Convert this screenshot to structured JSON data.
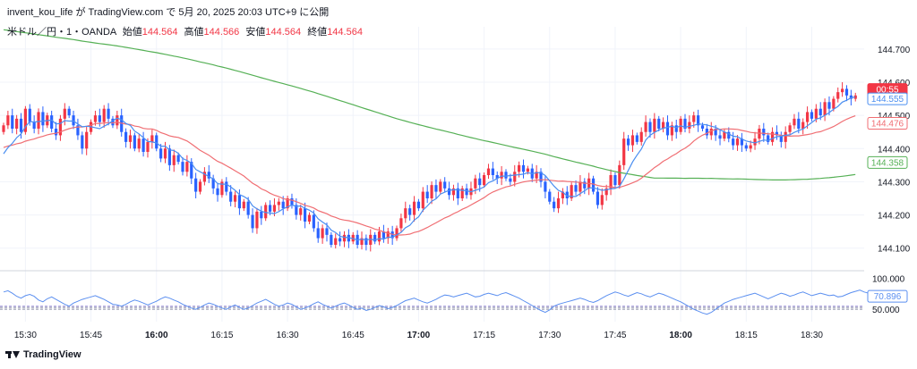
{
  "header": {
    "author": "invent_kou_life",
    "ga": "が",
    "site": "TradingView.com",
    "de": "で",
    "datetime": "5月 20, 2025 20:03 UTC+9",
    "published": "に公開"
  },
  "symbol_line": {
    "name": "米ドル／円・1・OANDA",
    "open_label": "始値",
    "open": "144.564",
    "high_label": "高値",
    "high": "144.566",
    "low_label": "安値",
    "low": "144.564",
    "close_label": "終値",
    "close": "144.564"
  },
  "footer": {
    "brand": "TradingView"
  },
  "colors": {
    "up": "#f23645",
    "down": "#2962ff",
    "ma_fast": "#4a8ef0",
    "ma_mid": "#f06e73",
    "ma_slow": "#55b055",
    "rsi": "#5b8ff0",
    "grid": "#f0f3fa"
  },
  "chart_data": [
    {
      "type": "candlestick",
      "title": "米ドル／円・1・OANDA",
      "ylim": [
        144.04,
        144.74
      ],
      "y_ticks": [
        144.1,
        144.2,
        144.3,
        144.4,
        144.5,
        144.6,
        144.7
      ],
      "y_tick_labels": [
        "144.100",
        "144.200",
        "144.300",
        "144.400",
        "144.500",
        "144.600",
        "144.700"
      ],
      "x_tick_labels": [
        "15:30",
        "15:45",
        "16:00",
        "16:15",
        "16:30",
        "16:45",
        "17:00",
        "17:15",
        "17:30",
        "17:45",
        "18:00",
        "18:15",
        "18:30"
      ],
      "x_tick_bold": [
        false,
        false,
        true,
        false,
        false,
        false,
        true,
        false,
        false,
        false,
        true,
        false,
        false
      ],
      "x_tick_minutes": [
        930,
        945,
        960,
        975,
        990,
        1005,
        1020,
        1035,
        1050,
        1065,
        1080,
        1095,
        1110
      ],
      "x_range_minutes": [
        925,
        1122
      ],
      "candles_start_minute": 925,
      "price_markers": [
        {
          "label": "00:55",
          "value": 144.564,
          "style": "filled",
          "color": "#f23645"
        },
        {
          "label": "144.555",
          "value": 144.555,
          "style": "outline",
          "color": "#4a8ef0"
        },
        {
          "label": "144.476",
          "value": 144.476,
          "style": "outline",
          "color": "#f06e73"
        },
        {
          "label": "144.358",
          "value": 144.358,
          "style": "outline",
          "color": "#55b055"
        }
      ],
      "close": [
        144.47,
        144.5,
        144.46,
        144.49,
        144.45,
        144.52,
        144.48,
        144.46,
        144.51,
        144.47,
        144.5,
        144.46,
        144.44,
        144.49,
        144.52,
        144.5,
        144.47,
        144.44,
        144.4,
        144.45,
        144.48,
        144.5,
        144.48,
        144.52,
        144.49,
        144.47,
        144.5,
        144.45,
        144.42,
        144.44,
        144.4,
        144.43,
        144.39,
        144.42,
        144.44,
        144.4,
        144.37,
        144.4,
        144.35,
        144.38,
        144.36,
        144.33,
        144.36,
        144.31,
        144.27,
        144.3,
        144.33,
        144.31,
        144.28,
        144.26,
        144.3,
        144.27,
        144.24,
        144.26,
        144.22,
        144.24,
        144.2,
        144.16,
        144.21,
        144.19,
        144.23,
        144.21,
        144.23,
        144.24,
        144.22,
        144.25,
        144.23,
        144.2,
        144.22,
        144.18,
        144.2,
        144.16,
        144.13,
        144.16,
        144.14,
        144.11,
        144.13,
        144.12,
        144.14,
        144.12,
        144.14,
        144.11,
        144.13,
        144.11,
        144.14,
        144.12,
        144.15,
        144.13,
        144.15,
        144.13,
        144.16,
        144.19,
        144.22,
        144.2,
        144.24,
        144.22,
        144.27,
        144.25,
        144.29,
        144.27,
        144.3,
        144.28,
        144.26,
        144.28,
        144.25,
        144.28,
        144.26,
        144.28,
        144.31,
        144.29,
        144.32,
        144.34,
        144.32,
        144.31,
        144.33,
        144.31,
        144.3,
        144.33,
        144.35,
        144.33,
        144.34,
        144.31,
        144.33,
        144.3,
        144.27,
        144.24,
        144.22,
        144.25,
        144.27,
        144.25,
        144.29,
        144.27,
        144.3,
        144.28,
        144.31,
        144.27,
        144.23,
        144.26,
        144.28,
        144.32,
        144.29,
        144.35,
        144.43,
        144.41,
        144.44,
        144.42,
        144.45,
        144.48,
        144.45,
        144.49,
        144.46,
        144.48,
        144.44,
        144.47,
        144.45,
        144.49,
        144.46,
        144.48,
        144.5,
        144.47,
        144.46,
        144.44,
        144.46,
        144.44,
        144.43,
        144.45,
        144.43,
        144.41,
        144.43,
        144.41,
        144.4,
        144.41,
        144.43,
        144.46,
        144.44,
        144.42,
        144.45,
        144.44,
        144.42,
        144.45,
        144.47,
        144.49,
        144.46,
        144.48,
        144.51,
        144.49,
        144.52,
        144.5,
        144.54,
        144.52,
        144.55,
        144.57,
        144.58,
        144.56,
        144.55,
        144.56
      ]
    },
    {
      "type": "line",
      "title": "RSI",
      "ylim": [
        30,
        108
      ],
      "y_ticks": [
        100,
        50
      ],
      "y_tick_labels": [
        "100.000",
        "50.000"
      ],
      "band_lines": [
        55,
        53,
        50
      ],
      "last_label": "70.896",
      "last_value": 70.896,
      "values": [
        78,
        80,
        76,
        71,
        68,
        72,
        74,
        71,
        65,
        62,
        67,
        70,
        66,
        62,
        58,
        55,
        60,
        63,
        66,
        68,
        70,
        72,
        69,
        66,
        62,
        58,
        57,
        55,
        58,
        62,
        65,
        63,
        60,
        57,
        60,
        63,
        67,
        70,
        68,
        65,
        62,
        58,
        55,
        52,
        50,
        53,
        57,
        60,
        58,
        55,
        52,
        50,
        54,
        57,
        53,
        50,
        52,
        56,
        60,
        63,
        66,
        62,
        58,
        55,
        57,
        60,
        58,
        54,
        50,
        52,
        55,
        59,
        62,
        58,
        55,
        52,
        55,
        58,
        60,
        57,
        53,
        50,
        52,
        48,
        50,
        53,
        56,
        54,
        51,
        53,
        56,
        60,
        64,
        66,
        68,
        65,
        62,
        60,
        63,
        66,
        70,
        73,
        72,
        70,
        72,
        74,
        76,
        73,
        70,
        71,
        74,
        76,
        74,
        72,
        75,
        77,
        74,
        71,
        68,
        64,
        60,
        56,
        52,
        48,
        45,
        49,
        55,
        58,
        60,
        62,
        64,
        66,
        68,
        66,
        63,
        61,
        64,
        68,
        72,
        75,
        78,
        76,
        73,
        71,
        74,
        77,
        75,
        72,
        70,
        73,
        76,
        74,
        71,
        68,
        65,
        62,
        58,
        54,
        50,
        47,
        44,
        42,
        45,
        50,
        55,
        60,
        63,
        66,
        68,
        70,
        72,
        74,
        76,
        73,
        70,
        67,
        70,
        73,
        76,
        74,
        71,
        73,
        76,
        78,
        75,
        72,
        74,
        76,
        74,
        72,
        73,
        70,
        71,
        74,
        77,
        79,
        81,
        78,
        76,
        74,
        71,
        72,
        73,
        71
      ]
    }
  ]
}
